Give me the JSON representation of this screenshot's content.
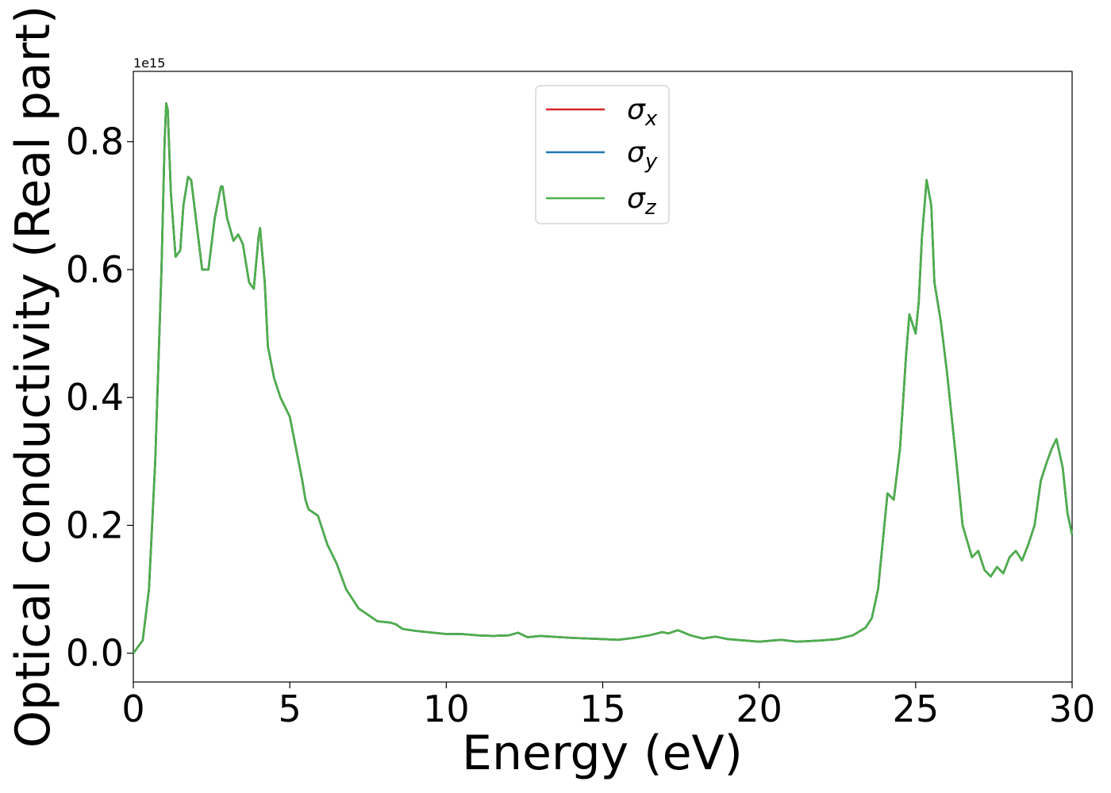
{
  "chart_data": {
    "type": "line",
    "xlabel": "Energy (eV)",
    "ylabel": "Optical conductivity (Real part)",
    "offset_text": "1e15",
    "xlim": [
      0,
      30
    ],
    "ylim": [
      -0.045,
      0.91
    ],
    "y_scale": 1000000000000000.0,
    "x_ticks": [
      0,
      5,
      10,
      15,
      20,
      25,
      30
    ],
    "x_tick_labels": [
      "0",
      "5",
      "10",
      "15",
      "20",
      "25",
      "30"
    ],
    "y_ticks": [
      0.0,
      0.2,
      0.4,
      0.6,
      0.8
    ],
    "y_tick_labels": [
      "0.0",
      "0.2",
      "0.4",
      "0.6",
      "0.8"
    ],
    "grid": false,
    "legend_position": "top-center",
    "series": [
      {
        "name": "σx",
        "symbol": "σ",
        "subscript": "x",
        "color": "#d62728",
        "values_ref": "shared"
      },
      {
        "name": "σy",
        "symbol": "σ",
        "subscript": "y",
        "color": "#1f77b4",
        "values_ref": "shared"
      },
      {
        "name": "σz",
        "symbol": "σ",
        "subscript": "z",
        "color": "#4daf4a",
        "values_ref": "shared"
      }
    ],
    "x": [
      0,
      0.3,
      0.5,
      0.7,
      0.9,
      1.0,
      1.05,
      1.1,
      1.2,
      1.35,
      1.5,
      1.6,
      1.75,
      1.85,
      2.0,
      2.2,
      2.4,
      2.6,
      2.8,
      2.85,
      3.0,
      3.2,
      3.35,
      3.5,
      3.7,
      3.85,
      4.0,
      4.05,
      4.2,
      4.3,
      4.5,
      4.7,
      4.9,
      5.0,
      5.2,
      5.4,
      5.5,
      5.6,
      5.9,
      6.2,
      6.5,
      6.8,
      7.2,
      7.5,
      7.8,
      8.2,
      8.4,
      8.6,
      9.0,
      10.0,
      10.5,
      11.0,
      11.5,
      12.0,
      12.3,
      12.6,
      13.0,
      14.0,
      15.0,
      15.5,
      16.0,
      16.5,
      16.9,
      17.1,
      17.4,
      17.8,
      18.2,
      18.6,
      19.0,
      20.0,
      20.7,
      21.2,
      22.0,
      22.5,
      23.0,
      23.4,
      23.6,
      23.8,
      24.0,
      24.1,
      24.3,
      24.5,
      24.7,
      24.8,
      25.0,
      25.1,
      25.2,
      25.35,
      25.5,
      25.6,
      25.8,
      26.0,
      26.3,
      26.5,
      26.8,
      27.0,
      27.2,
      27.4,
      27.6,
      27.8,
      28.0,
      28.2,
      28.4,
      28.6,
      28.8,
      29.0,
      29.2,
      29.35,
      29.5,
      29.7,
      29.85,
      30.0
    ],
    "y": [
      0.0,
      0.02,
      0.1,
      0.3,
      0.6,
      0.8,
      0.86,
      0.85,
      0.72,
      0.62,
      0.63,
      0.7,
      0.745,
      0.74,
      0.68,
      0.6,
      0.6,
      0.68,
      0.73,
      0.73,
      0.68,
      0.645,
      0.655,
      0.64,
      0.58,
      0.57,
      0.65,
      0.665,
      0.58,
      0.48,
      0.43,
      0.4,
      0.38,
      0.37,
      0.32,
      0.27,
      0.24,
      0.225,
      0.215,
      0.17,
      0.14,
      0.1,
      0.07,
      0.06,
      0.05,
      0.048,
      0.045,
      0.038,
      0.035,
      0.03,
      0.03,
      0.028,
      0.027,
      0.028,
      0.032,
      0.025,
      0.027,
      0.024,
      0.022,
      0.021,
      0.024,
      0.028,
      0.033,
      0.031,
      0.036,
      0.028,
      0.023,
      0.026,
      0.022,
      0.018,
      0.021,
      0.018,
      0.02,
      0.022,
      0.028,
      0.04,
      0.055,
      0.1,
      0.2,
      0.25,
      0.24,
      0.32,
      0.47,
      0.53,
      0.5,
      0.55,
      0.65,
      0.74,
      0.7,
      0.58,
      0.52,
      0.44,
      0.3,
      0.2,
      0.15,
      0.16,
      0.13,
      0.12,
      0.135,
      0.125,
      0.15,
      0.16,
      0.145,
      0.17,
      0.2,
      0.27,
      0.3,
      0.32,
      0.335,
      0.29,
      0.22,
      0.185
    ]
  }
}
